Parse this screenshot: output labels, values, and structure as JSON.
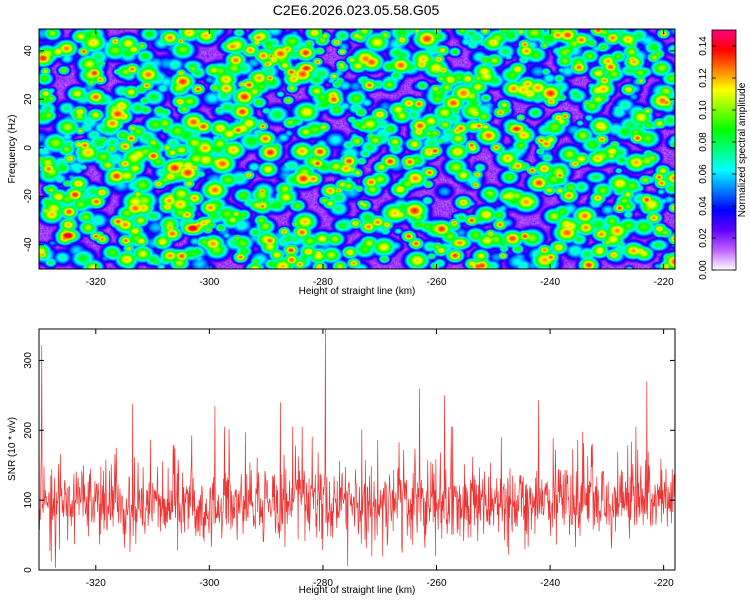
{
  "figure": {
    "title": "C2E6.2026.023.05.58.G05"
  },
  "chart_data": [
    {
      "type": "heatmap",
      "title": "C2E6.2026.023.05.58.G05",
      "xlabel": "Height of straight line (km)",
      "ylabel": "Frequency (Hz)",
      "xlim": [
        -330,
        -218
      ],
      "ylim": [
        -50,
        49
      ],
      "x_ticks": [
        -320,
        -300,
        -280,
        -260,
        -240,
        -220
      ],
      "y_ticks": [
        -40,
        -20,
        0,
        20,
        40
      ],
      "colorbar": {
        "label": "Normalized spectral amplitude",
        "range": [
          0,
          0.15
        ],
        "ticks": [
          0,
          0.02,
          0.04,
          0.06,
          0.08,
          0.1,
          0.12,
          0.14
        ],
        "tick_labels": [
          "0.00",
          "0.02",
          "0.04",
          "0.06",
          "0.08",
          "0.10",
          "0.12",
          "0.14"
        ],
        "colors": [
          "#ffffff",
          "#c060ff",
          "#6000ff",
          "#0000ff",
          "#0080ff",
          "#00ffff",
          "#00ff80",
          "#00ff00",
          "#80ff00",
          "#ffff00",
          "#ff8000",
          "#ff0000",
          "#ff0080"
        ]
      },
      "background_level": 0.02,
      "hotspots": [
        {
          "x": -296,
          "y": 42,
          "v": 0.12
        },
        {
          "x": -283,
          "y": 33,
          "v": 0.13
        },
        {
          "x": -246,
          "y": 8,
          "v": 0.13
        },
        {
          "x": -325,
          "y": -36,
          "v": 0.14
        },
        {
          "x": -303,
          "y": -33,
          "v": 0.14
        },
        {
          "x": -256,
          "y": -39,
          "v": 0.12
        },
        {
          "x": -260,
          "y": 46,
          "v": 0.09
        },
        {
          "x": -303,
          "y": 34,
          "v": 0.08
        },
        {
          "x": -226,
          "y": 32,
          "v": 0.08
        },
        {
          "x": -264,
          "y": 2,
          "v": 0.08
        },
        {
          "x": -232,
          "y": -12,
          "v": 0.08
        },
        {
          "x": -310,
          "y": -28,
          "v": 0.08
        },
        {
          "x": -221,
          "y": -40,
          "v": 0.08
        },
        {
          "x": -285,
          "y": -13,
          "v": 0.07
        },
        {
          "x": -268,
          "y": 28,
          "v": 0.07
        }
      ]
    },
    {
      "type": "line",
      "xlabel": "Height of straight line (km)",
      "ylabel": "SNR (10 * v/v)",
      "xlim": [
        -330,
        -218
      ],
      "ylim": [
        0,
        345
      ],
      "x_ticks": [
        -320,
        -300,
        -280,
        -260,
        -240,
        -220
      ],
      "y_ticks": [
        0,
        100,
        200,
        300
      ],
      "color": "#ee3333",
      "baseline": 95,
      "spread": 50,
      "samples": 1400,
      "spikes": [
        {
          "x": -329.5,
          "y": 322
        },
        {
          "x": -279.6,
          "y": 345
        },
        {
          "x": -313.5,
          "y": 238
        },
        {
          "x": -223.0,
          "y": 270
        },
        {
          "x": -263.0,
          "y": 260
        },
        {
          "x": -330.0,
          "y": 226
        },
        {
          "x": -258.6,
          "y": 250
        },
        {
          "x": -242.0,
          "y": 243
        },
        {
          "x": -287.5,
          "y": 240
        },
        {
          "x": -299.0,
          "y": 235
        }
      ]
    }
  ]
}
